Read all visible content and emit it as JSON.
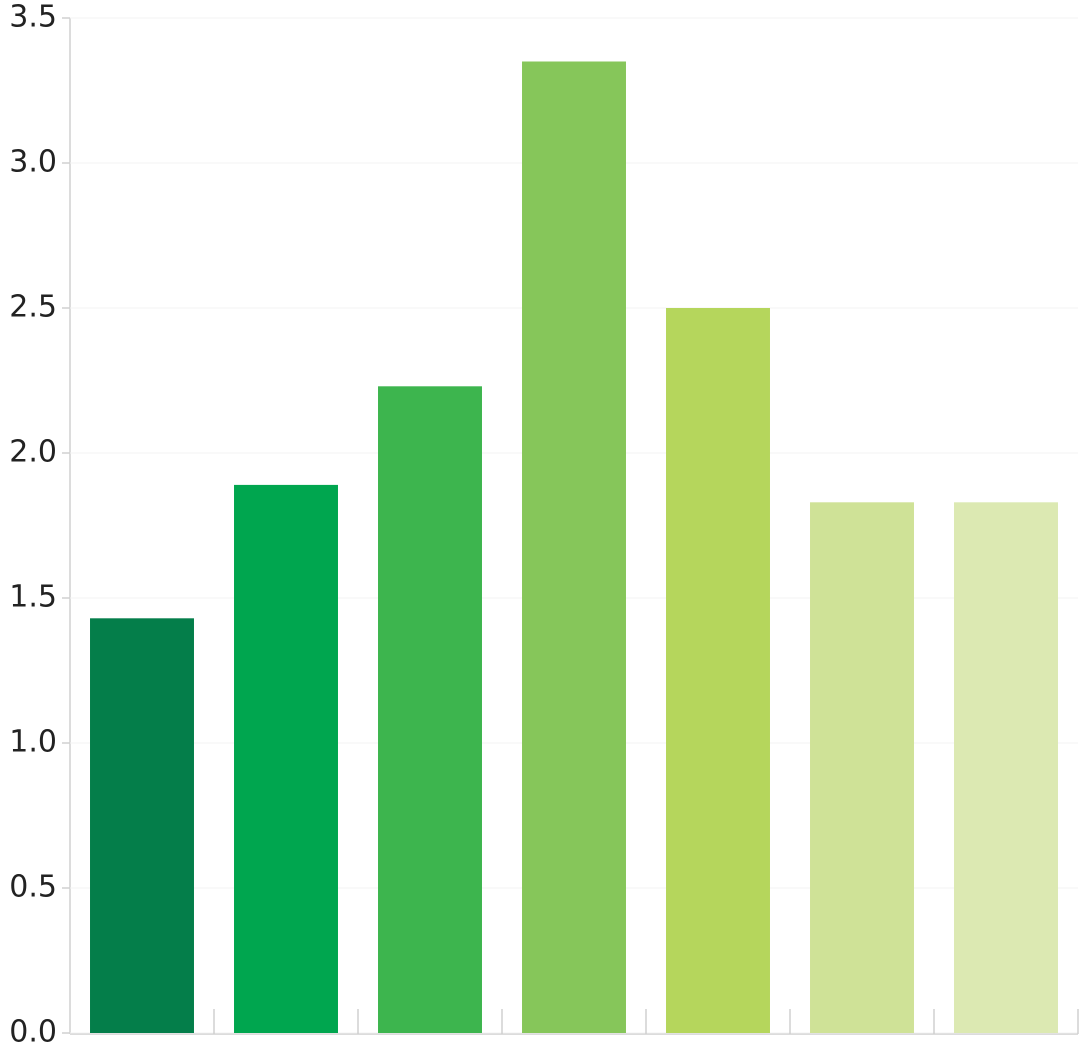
{
  "chart_data": {
    "type": "bar",
    "categories": [
      null,
      null,
      null,
      null,
      null,
      null,
      null
    ],
    "values": [
      1.43,
      1.89,
      2.23,
      3.35,
      2.5,
      1.83,
      1.83
    ],
    "colors": [
      "#047e4a",
      "#00a64f",
      "#3db54e",
      "#86c65a",
      "#b5d65c",
      "#cfe297",
      "#dce9b2"
    ],
    "ylim": [
      0,
      3.5
    ],
    "yticks": [
      {
        "value": 0,
        "label": "0.0"
      },
      0.5,
      {
        "value": 1,
        "label": "1.0"
      },
      1.5,
      {
        "value": 2,
        "label": "2.0"
      },
      2.5,
      {
        "value": 3,
        "label": "3.0"
      },
      3.5
    ],
    "grid": true
  }
}
